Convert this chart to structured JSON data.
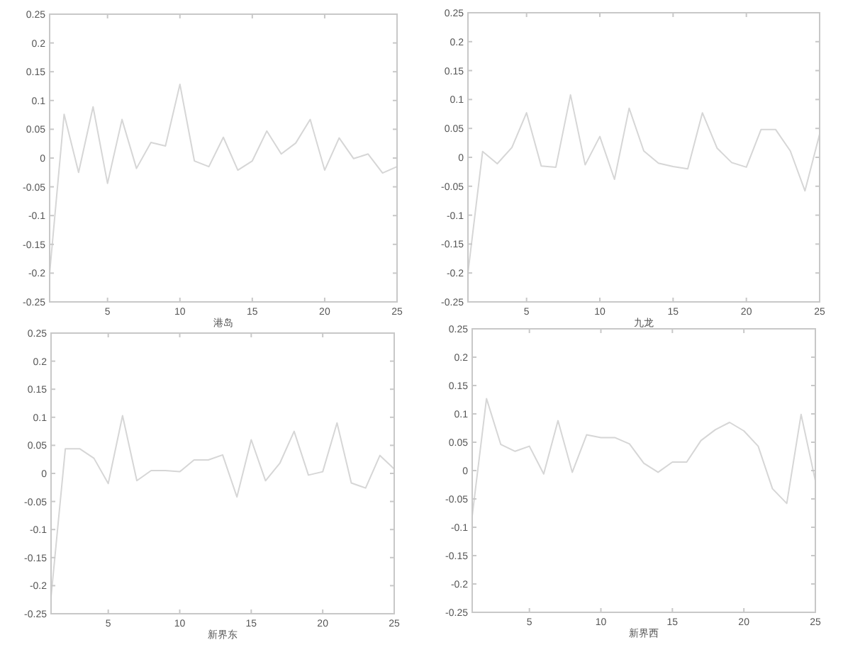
{
  "chart_data": [
    {
      "type": "line",
      "xlabel": "港岛",
      "x": [
        1,
        2,
        3,
        4,
        5,
        6,
        7,
        8,
        9,
        10,
        11,
        12,
        13,
        14,
        15,
        16,
        17,
        18,
        19,
        20,
        21,
        22,
        23,
        24,
        25
      ],
      "series": [
        {
          "color": "#d6d6d6",
          "values": [
            -0.2,
            0.076,
            -0.025,
            0.089,
            -0.044,
            0.067,
            -0.018,
            0.027,
            0.021,
            0.128,
            -0.005,
            -0.015,
            0.036,
            -0.021,
            -0.005,
            0.047,
            0.007,
            0.026,
            0.067,
            -0.021,
            0.035,
            -0.001,
            0.007,
            -0.026,
            -0.015
          ]
        }
      ],
      "xlim": [
        1,
        25
      ],
      "ylim": [
        -0.25,
        0.25
      ],
      "xticks": [
        5,
        10,
        15,
        20,
        25
      ],
      "yticks": [
        -0.25,
        -0.2,
        -0.15,
        -0.1,
        -0.05,
        0,
        0.05,
        0.1,
        0.15,
        0.2,
        0.25
      ]
    },
    {
      "type": "line",
      "xlabel": "九龙",
      "x": [
        1,
        2,
        3,
        4,
        5,
        6,
        7,
        8,
        9,
        10,
        11,
        12,
        13,
        14,
        15,
        16,
        17,
        18,
        19,
        20,
        21,
        22,
        23,
        24,
        25
      ],
      "series": [
        {
          "color": "#d6d6d6",
          "values": [
            -0.2,
            0.01,
            -0.011,
            0.017,
            0.077,
            -0.015,
            -0.017,
            0.108,
            -0.013,
            0.036,
            -0.038,
            0.085,
            0.011,
            -0.01,
            -0.016,
            -0.02,
            0.077,
            0.016,
            -0.009,
            -0.017,
            0.048,
            0.048,
            0.011,
            -0.058,
            0.04
          ]
        }
      ],
      "xlim": [
        1,
        25
      ],
      "ylim": [
        -0.25,
        0.25
      ],
      "xticks": [
        5,
        10,
        15,
        20,
        25
      ],
      "yticks": [
        -0.25,
        -0.2,
        -0.15,
        -0.1,
        -0.05,
        0,
        0.05,
        0.1,
        0.15,
        0.2,
        0.25
      ]
    },
    {
      "type": "line",
      "xlabel": "新界东",
      "x": [
        1,
        2,
        3,
        4,
        5,
        6,
        7,
        8,
        9,
        10,
        11,
        12,
        13,
        14,
        15,
        16,
        17,
        18,
        19,
        20,
        21,
        22,
        23,
        24,
        25
      ],
      "series": [
        {
          "color": "#d6d6d6",
          "values": [
            -0.22,
            0.044,
            0.044,
            0.027,
            -0.018,
            0.103,
            -0.013,
            0.005,
            0.005,
            0.003,
            0.024,
            0.024,
            0.033,
            -0.042,
            0.06,
            -0.013,
            0.018,
            0.075,
            -0.003,
            0.003,
            0.09,
            -0.017,
            -0.026,
            0.032,
            0.008
          ]
        }
      ],
      "xlim": [
        1,
        25
      ],
      "ylim": [
        -0.25,
        0.25
      ],
      "xticks": [
        5,
        10,
        15,
        20,
        25
      ],
      "yticks": [
        -0.25,
        -0.2,
        -0.15,
        -0.1,
        -0.05,
        0,
        0.05,
        0.1,
        0.15,
        0.2,
        0.25
      ]
    },
    {
      "type": "line",
      "xlabel": "新界西",
      "x": [
        1,
        2,
        3,
        4,
        5,
        6,
        7,
        8,
        9,
        10,
        11,
        12,
        13,
        14,
        15,
        16,
        17,
        18,
        19,
        20,
        21,
        22,
        23,
        24,
        25
      ],
      "series": [
        {
          "color": "#d6d6d6",
          "values": [
            -0.08,
            0.127,
            0.046,
            0.034,
            0.043,
            -0.006,
            0.088,
            -0.003,
            0.063,
            0.058,
            0.058,
            0.047,
            0.013,
            -0.003,
            0.015,
            0.015,
            0.053,
            0.072,
            0.085,
            0.07,
            0.043,
            -0.032,
            -0.058,
            0.099,
            -0.018
          ]
        }
      ],
      "xlim": [
        1,
        25
      ],
      "ylim": [
        -0.25,
        0.25
      ],
      "xticks": [
        5,
        10,
        15,
        20,
        25
      ],
      "yticks": [
        -0.25,
        -0.2,
        -0.15,
        -0.1,
        -0.05,
        0,
        0.05,
        0.1,
        0.15,
        0.2,
        0.25
      ]
    }
  ]
}
